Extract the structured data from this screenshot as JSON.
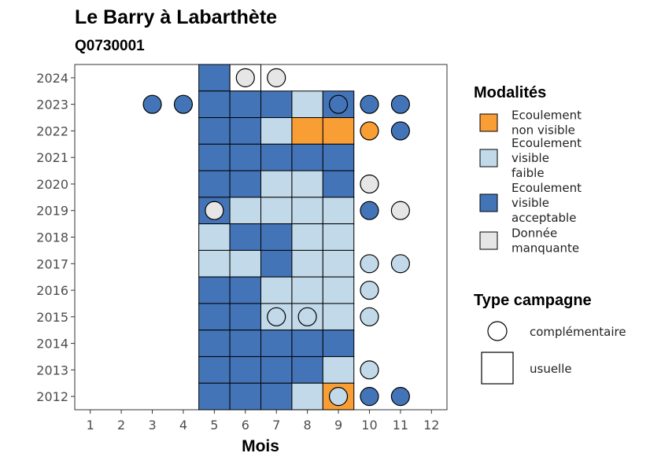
{
  "chart_data": {
    "type": "heatmap",
    "title": "Le Barry à Labarthète",
    "subtitle": "Q0730001",
    "xlabel": "Mois",
    "ylabel": "",
    "x_ticks": [
      "1",
      "2",
      "3",
      "4",
      "5",
      "6",
      "7",
      "8",
      "9",
      "10",
      "11",
      "12"
    ],
    "y_ticks": [
      "2012",
      "2013",
      "2014",
      "2015",
      "2016",
      "2017",
      "2018",
      "2019",
      "2020",
      "2021",
      "2022",
      "2023",
      "2024"
    ],
    "xlim": [
      0.5,
      12.5
    ],
    "ylim": [
      2011.5,
      2024.5
    ],
    "grid": false,
    "legend_position": "right",
    "colors": {
      "non_visible": "#F89E35",
      "faible": "#C1D9E8",
      "acceptable": "#4474B8",
      "manquante": "#E6E6E6"
    },
    "legend_modalites": {
      "title": "Modalités",
      "items": [
        {
          "key": "non_visible",
          "label_lines": [
            "Ecoulement",
            "non visible"
          ]
        },
        {
          "key": "faible",
          "label_lines": [
            "Ecoulement",
            "visible",
            "faible"
          ]
        },
        {
          "key": "acceptable",
          "label_lines": [
            "Ecoulement",
            "visible",
            "acceptable"
          ]
        },
        {
          "key": "manquante",
          "label_lines": [
            "Donnée",
            "manquante"
          ]
        }
      ]
    },
    "legend_campagne": {
      "title": "Type campagne",
      "items": [
        {
          "shape": "circle",
          "label": "complémentaire"
        },
        {
          "shape": "square",
          "label": "usuelle"
        }
      ]
    },
    "usuelle": [
      {
        "year": 2024,
        "month": 5,
        "mod": "acceptable"
      },
      {
        "year": 2024,
        "month": 6,
        "mod": "manquante_empty"
      },
      {
        "year": 2023,
        "month": 5,
        "mod": "acceptable"
      },
      {
        "year": 2023,
        "month": 6,
        "mod": "acceptable"
      },
      {
        "year": 2023,
        "month": 7,
        "mod": "acceptable"
      },
      {
        "year": 2023,
        "month": 8,
        "mod": "faible"
      },
      {
        "year": 2023,
        "month": 9,
        "mod": "acceptable"
      },
      {
        "year": 2022,
        "month": 5,
        "mod": "acceptable"
      },
      {
        "year": 2022,
        "month": 6,
        "mod": "acceptable"
      },
      {
        "year": 2022,
        "month": 7,
        "mod": "faible"
      },
      {
        "year": 2022,
        "month": 8,
        "mod": "non_visible"
      },
      {
        "year": 2022,
        "month": 9,
        "mod": "non_visible"
      },
      {
        "year": 2021,
        "month": 5,
        "mod": "acceptable"
      },
      {
        "year": 2021,
        "month": 6,
        "mod": "acceptable"
      },
      {
        "year": 2021,
        "month": 7,
        "mod": "acceptable"
      },
      {
        "year": 2021,
        "month": 8,
        "mod": "acceptable"
      },
      {
        "year": 2021,
        "month": 9,
        "mod": "acceptable"
      },
      {
        "year": 2020,
        "month": 5,
        "mod": "acceptable"
      },
      {
        "year": 2020,
        "month": 6,
        "mod": "acceptable"
      },
      {
        "year": 2020,
        "month": 7,
        "mod": "faible"
      },
      {
        "year": 2020,
        "month": 8,
        "mod": "faible"
      },
      {
        "year": 2020,
        "month": 9,
        "mod": "acceptable"
      },
      {
        "year": 2019,
        "month": 5,
        "mod": "acceptable"
      },
      {
        "year": 2019,
        "month": 6,
        "mod": "faible"
      },
      {
        "year": 2019,
        "month": 7,
        "mod": "faible"
      },
      {
        "year": 2019,
        "month": 8,
        "mod": "faible"
      },
      {
        "year": 2019,
        "month": 9,
        "mod": "faible"
      },
      {
        "year": 2018,
        "month": 5,
        "mod": "faible"
      },
      {
        "year": 2018,
        "month": 6,
        "mod": "acceptable"
      },
      {
        "year": 2018,
        "month": 7,
        "mod": "acceptable"
      },
      {
        "year": 2018,
        "month": 8,
        "mod": "faible"
      },
      {
        "year": 2018,
        "month": 9,
        "mod": "faible"
      },
      {
        "year": 2017,
        "month": 5,
        "mod": "faible"
      },
      {
        "year": 2017,
        "month": 6,
        "mod": "faible"
      },
      {
        "year": 2017,
        "month": 7,
        "mod": "acceptable"
      },
      {
        "year": 2017,
        "month": 8,
        "mod": "faible"
      },
      {
        "year": 2017,
        "month": 9,
        "mod": "faible"
      },
      {
        "year": 2016,
        "month": 5,
        "mod": "acceptable"
      },
      {
        "year": 2016,
        "month": 6,
        "mod": "acceptable"
      },
      {
        "year": 2016,
        "month": 7,
        "mod": "faible"
      },
      {
        "year": 2016,
        "month": 8,
        "mod": "faible"
      },
      {
        "year": 2016,
        "month": 9,
        "mod": "faible"
      },
      {
        "year": 2015,
        "month": 5,
        "mod": "acceptable"
      },
      {
        "year": 2015,
        "month": 6,
        "mod": "acceptable"
      },
      {
        "year": 2015,
        "month": 7,
        "mod": "faible"
      },
      {
        "year": 2015,
        "month": 8,
        "mod": "faible"
      },
      {
        "year": 2015,
        "month": 9,
        "mod": "faible"
      },
      {
        "year": 2014,
        "month": 5,
        "mod": "acceptable"
      },
      {
        "year": 2014,
        "month": 6,
        "mod": "acceptable"
      },
      {
        "year": 2014,
        "month": 7,
        "mod": "acceptable"
      },
      {
        "year": 2014,
        "month": 8,
        "mod": "acceptable"
      },
      {
        "year": 2014,
        "month": 9,
        "mod": "acceptable"
      },
      {
        "year": 2013,
        "month": 5,
        "mod": "acceptable"
      },
      {
        "year": 2013,
        "month": 6,
        "mod": "acceptable"
      },
      {
        "year": 2013,
        "month": 7,
        "mod": "acceptable"
      },
      {
        "year": 2013,
        "month": 8,
        "mod": "acceptable"
      },
      {
        "year": 2013,
        "month": 9,
        "mod": "faible"
      },
      {
        "year": 2012,
        "month": 5,
        "mod": "acceptable"
      },
      {
        "year": 2012,
        "month": 6,
        "mod": "acceptable"
      },
      {
        "year": 2012,
        "month": 7,
        "mod": "acceptable"
      },
      {
        "year": 2012,
        "month": 8,
        "mod": "faible"
      },
      {
        "year": 2012,
        "month": 9,
        "mod": "non_visible"
      }
    ],
    "complementaire": [
      {
        "year": 2024,
        "month": 6,
        "mod": "manquante"
      },
      {
        "year": 2024,
        "month": 7,
        "mod": "manquante"
      },
      {
        "year": 2023,
        "month": 3,
        "mod": "acceptable"
      },
      {
        "year": 2023,
        "month": 4,
        "mod": "acceptable"
      },
      {
        "year": 2023,
        "month": 9,
        "mod": "acceptable"
      },
      {
        "year": 2023,
        "month": 10,
        "mod": "acceptable"
      },
      {
        "year": 2023,
        "month": 11,
        "mod": "acceptable"
      },
      {
        "year": 2022,
        "month": 10,
        "mod": "non_visible"
      },
      {
        "year": 2022,
        "month": 11,
        "mod": "acceptable"
      },
      {
        "year": 2020,
        "month": 10,
        "mod": "manquante"
      },
      {
        "year": 2019,
        "month": 5,
        "mod": "manquante"
      },
      {
        "year": 2019,
        "month": 10,
        "mod": "acceptable"
      },
      {
        "year": 2019,
        "month": 11,
        "mod": "manquante"
      },
      {
        "year": 2017,
        "month": 10,
        "mod": "faible"
      },
      {
        "year": 2017,
        "month": 11,
        "mod": "faible"
      },
      {
        "year": 2016,
        "month": 10,
        "mod": "faible"
      },
      {
        "year": 2015,
        "month": 7,
        "mod": "faible"
      },
      {
        "year": 2015,
        "month": 8,
        "mod": "faible"
      },
      {
        "year": 2015,
        "month": 10,
        "mod": "faible"
      },
      {
        "year": 2013,
        "month": 10,
        "mod": "faible"
      },
      {
        "year": 2012,
        "month": 9,
        "mod": "faible"
      },
      {
        "year": 2012,
        "month": 10,
        "mod": "acceptable"
      },
      {
        "year": 2012,
        "month": 11,
        "mod": "acceptable"
      }
    ]
  }
}
